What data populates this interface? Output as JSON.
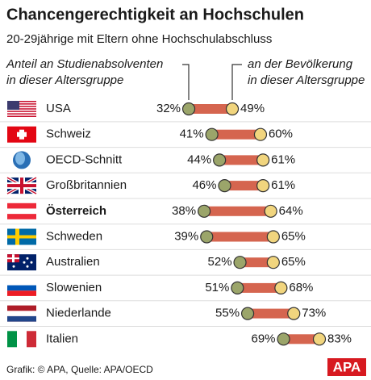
{
  "chart_data": {
    "type": "dumbbell",
    "title": "Chancengerechtigkeit an Hochschulen",
    "subtitle": "20-29jährige mit Eltern ohne Hochschulabschluss",
    "categories": [
      "USA",
      "Schweiz",
      "OECD-Schnitt",
      "Großbritannien",
      "Österreich",
      "Schweden",
      "Australien",
      "Slowenien",
      "Niederlande",
      "Italien"
    ],
    "highlight": "Österreich",
    "series": [
      {
        "name": "Anteil an Studienabsolventen\nin dieser Altersgruppe",
        "color": "#9ba56a",
        "values": [
          32,
          41,
          44,
          46,
          38,
          39,
          52,
          51,
          55,
          69
        ],
        "value_labels": [
          "32%",
          "41%",
          "44%",
          "46%",
          "38%",
          "39%",
          "52%",
          "51%",
          "55%",
          "69%"
        ]
      },
      {
        "name": "an der Bevölkerung\nin dieser Altersgruppe",
        "color": "#f1d57e",
        "values": [
          49,
          60,
          61,
          61,
          64,
          65,
          65,
          68,
          73,
          83
        ],
        "value_labels": [
          "49%",
          "60%",
          "61%",
          "61%",
          "64%",
          "65%",
          "65%",
          "68%",
          "73%",
          "83%"
        ]
      }
    ],
    "bar_color": "#d5654f",
    "source": "Grafik: © APA, Quelle: APA/OECD",
    "logo": "APA"
  }
}
